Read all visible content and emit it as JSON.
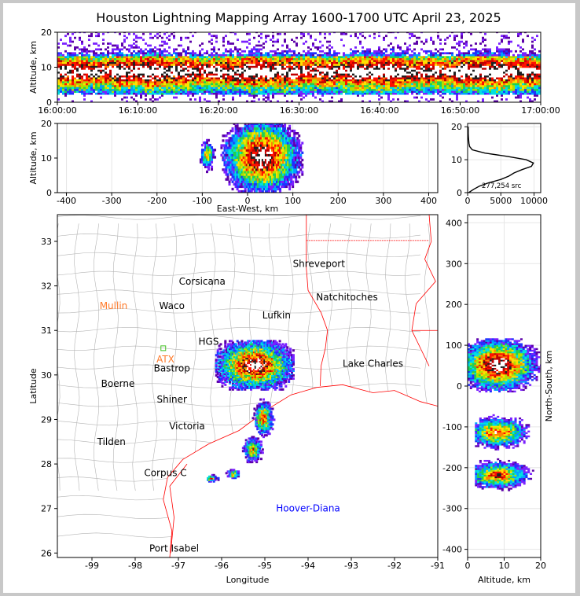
{
  "title": "Houston Lightning Mapping Array 1600-1700 UTC April 23, 2025",
  "colors": {
    "density_scale": [
      "#5b00a8",
      "#7a20ff",
      "#2030ff",
      "#00a0ff",
      "#00e0e0",
      "#20d050",
      "#b0e000",
      "#ffe000",
      "#ff8000",
      "#ff1000",
      "#c00000",
      "#202020",
      "#ffffff"
    ],
    "state_border": "#ff0000",
    "county_lines": "#b4b4b4",
    "source_label": "#ff7a2a",
    "special_label": "#0000ff"
  },
  "chart_data": [
    {
      "id": "time_height",
      "type": "heatmap",
      "xlabel": "",
      "ylabel": "Altitude, km",
      "x_ticks": [
        "16:00:00",
        "16:10:00",
        "16:20:00",
        "16:30:00",
        "16:40:00",
        "16:50:00",
        "17:00:00"
      ],
      "y_ticks": [
        0,
        10,
        20
      ],
      "ylim": [
        0,
        20
      ],
      "core_altitude_km": [
        5,
        12
      ]
    },
    {
      "id": "ew_height",
      "type": "heatmap",
      "xlabel": "East-West, km",
      "ylabel": "Altitude, km",
      "xlim": [
        -420,
        420
      ],
      "ylim": [
        0,
        20
      ],
      "x_ticks": [
        -400,
        -300,
        -200,
        -100,
        0,
        100,
        200,
        300,
        400
      ],
      "y_ticks": [
        0,
        10,
        20
      ],
      "clusters": [
        {
          "x": [
            -110,
            -70
          ],
          "z": [
            5,
            16
          ]
        },
        {
          "x": [
            -50,
            110
          ],
          "z": [
            0,
            20
          ]
        }
      ]
    },
    {
      "id": "altitude_histogram",
      "type": "line",
      "xlim": [
        0,
        11000
      ],
      "ylim": [
        0,
        21
      ],
      "x_ticks": [
        0,
        5000,
        10000
      ],
      "y_ticks": [
        0,
        10,
        20
      ],
      "annotation": "277,254 src",
      "series": [
        {
          "altitude_km": [
            0,
            1,
            2,
            3,
            4,
            5,
            6,
            7,
            8,
            9,
            10,
            11,
            12,
            13,
            14,
            15,
            16,
            17,
            18,
            19,
            20
          ],
          "count": [
            150,
            900,
            1800,
            3200,
            5000,
            6200,
            7000,
            8200,
            9600,
            9900,
            8800,
            6000,
            2600,
            700,
            300,
            200,
            150,
            120,
            100,
            90,
            80
          ]
        }
      ]
    },
    {
      "id": "plan_view",
      "type": "scatter",
      "xlabel": "Longitude",
      "ylabel": "Latitude",
      "xlim": [
        -99.8,
        -91
      ],
      "ylim": [
        25.9,
        33.6
      ],
      "x_ticks": [
        -99,
        -98,
        -97,
        -96,
        -95,
        -94,
        -93,
        -92,
        -91
      ],
      "y_ticks": [
        26,
        27,
        28,
        29,
        30,
        31,
        32,
        33
      ],
      "cities": [
        {
          "name": "Shreveport",
          "lon": -93.75,
          "lat": 32.5
        },
        {
          "name": "Corsicana",
          "lon": -96.45,
          "lat": 32.1
        },
        {
          "name": "Natchitoches",
          "lon": -93.1,
          "lat": 31.75
        },
        {
          "name": "Waco",
          "lon": -97.15,
          "lat": 31.55
        },
        {
          "name": "Lufkin",
          "lon": -94.73,
          "lat": 31.34
        },
        {
          "name": "HGS",
          "lon": -96.3,
          "lat": 30.75
        },
        {
          "name": "Lake Charles",
          "lon": -92.5,
          "lat": 30.25
        },
        {
          "name": "Bastrop",
          "lon": -97.15,
          "lat": 30.15
        },
        {
          "name": "Boerne",
          "lon": -98.4,
          "lat": 29.8
        },
        {
          "name": "Shiner",
          "lon": -97.15,
          "lat": 29.45
        },
        {
          "name": "Victoria",
          "lon": -96.8,
          "lat": 28.85
        },
        {
          "name": "Tilden",
          "lon": -98.55,
          "lat": 28.5
        },
        {
          "name": "Corpus C",
          "lon": -97.3,
          "lat": 27.8
        },
        {
          "name": "Port Isabel",
          "lon": -97.1,
          "lat": 26.1
        }
      ],
      "sources": [
        {
          "name": "Mullin",
          "lon": -98.5,
          "lat": 31.55
        },
        {
          "name": "ATX",
          "lon": -97.3,
          "lat": 30.35
        }
      ],
      "special": {
        "name": "Hoover-Diana",
        "lon": -94.0,
        "lat": 27.0
      },
      "storms": [
        {
          "lon": -95.25,
          "lat": 30.25,
          "dlon": 0.9,
          "dlat": 0.55,
          "intensity": 1.0
        },
        {
          "lon": -95.05,
          "lat": 29.05,
          "dlon": 0.25,
          "dlat": 0.45,
          "intensity": 0.8
        },
        {
          "lon": -95.3,
          "lat": 28.35,
          "dlon": 0.3,
          "dlat": 0.35,
          "intensity": 0.7
        },
        {
          "lon": -95.75,
          "lat": 27.8,
          "dlon": 0.2,
          "dlat": 0.12,
          "intensity": 0.7
        },
        {
          "lon": -96.25,
          "lat": 27.7,
          "dlon": 0.2,
          "dlat": 0.1,
          "intensity": 0.7
        }
      ]
    },
    {
      "id": "ns_height",
      "type": "heatmap",
      "xlabel": "Altitude, km",
      "ylabel": "North-South, km",
      "xlim": [
        0,
        20
      ],
      "ylim": [
        -420,
        420
      ],
      "x_ticks": [
        0,
        10,
        20
      ],
      "y_ticks": [
        -400,
        -300,
        -200,
        -100,
        0,
        100,
        200,
        300,
        400
      ],
      "clusters": [
        {
          "y": [
            -10,
            110
          ],
          "z": [
            0,
            20
          ]
        },
        {
          "y": [
            -160,
            -70
          ],
          "z": [
            2,
            18
          ]
        },
        {
          "y": [
            -260,
            -180
          ],
          "z": [
            2,
            20
          ]
        }
      ]
    }
  ]
}
